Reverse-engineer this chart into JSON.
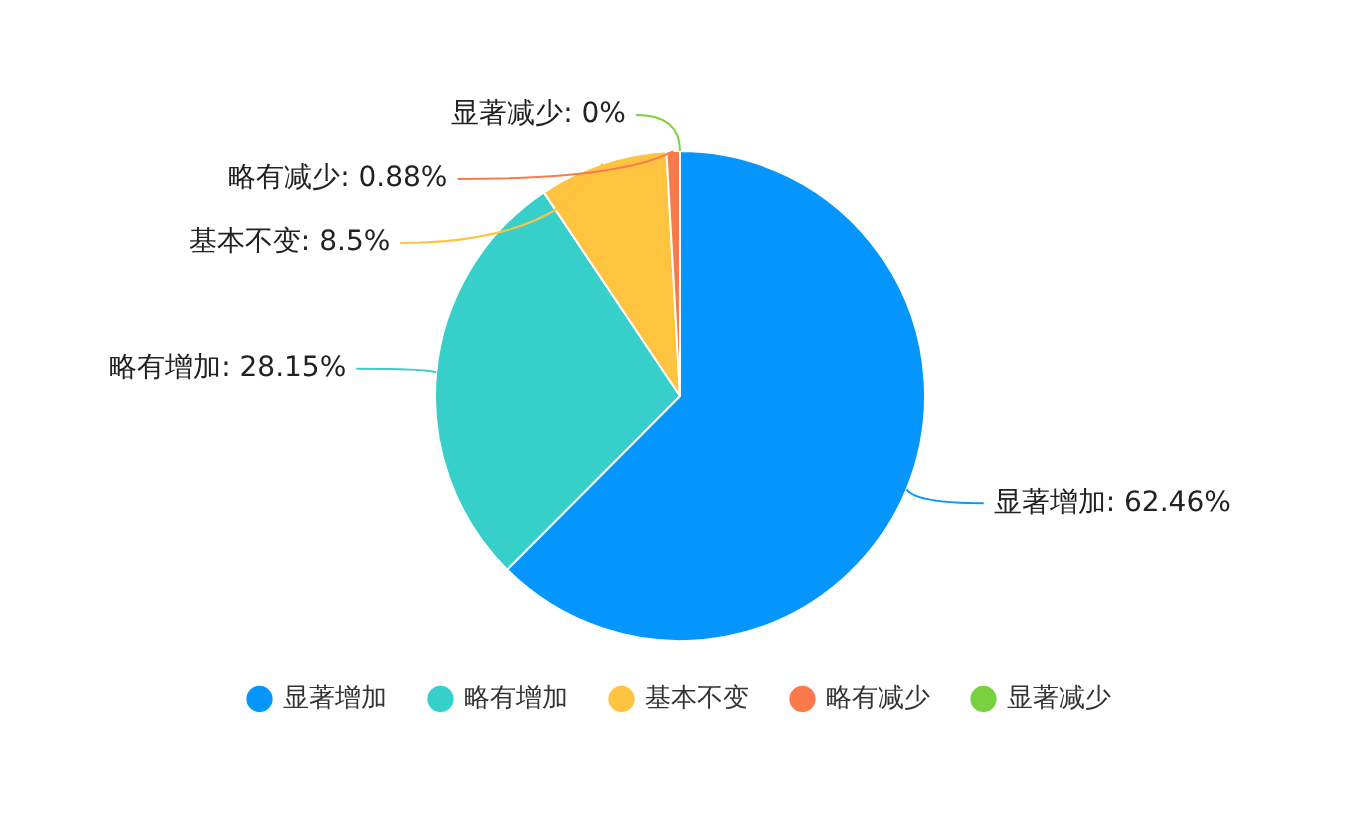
{
  "chart_data": {
    "type": "pie",
    "categories": [
      "显著增加",
      "略有增加",
      "基本不变",
      "略有减少",
      "显著减少"
    ],
    "values": [
      62.46,
      28.15,
      8.5,
      0.88,
      0
    ],
    "value_labels": [
      "显著增加: 62.46%",
      "略有增加: 28.15%",
      "基本不变: 8.5%",
      "略有减少: 0.88%",
      "显著减少: 0%"
    ],
    "colors": [
      "#0596fd",
      "#36cfc9",
      "#fec33f",
      "#fb7a4b",
      "#7ad13f"
    ],
    "legend": "bottom"
  }
}
